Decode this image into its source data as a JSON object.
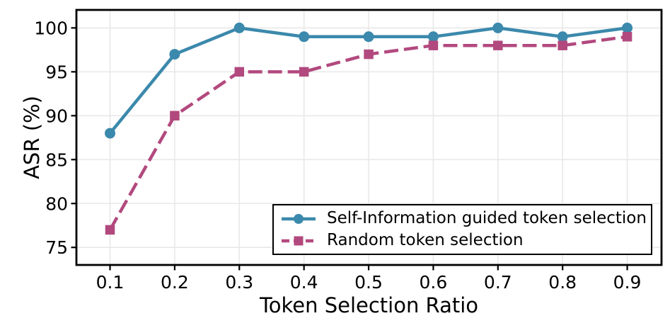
{
  "figure": {
    "background": "#ffffff"
  },
  "chart_data": {
    "type": "line",
    "title": "",
    "xlabel": "Token Selection Ratio",
    "ylabel": "ASR (%)",
    "x": [
      0.1,
      0.2,
      0.3,
      0.4,
      0.5,
      0.6,
      0.7,
      0.8,
      0.9
    ],
    "x_tick_labels": [
      "0.1",
      "0.2",
      "0.3",
      "0.4",
      "0.5",
      "0.6",
      "0.7",
      "0.8",
      "0.9"
    ],
    "y_ticks": [
      75,
      80,
      85,
      90,
      95,
      100
    ],
    "xlim": [
      0.048,
      0.953
    ],
    "ylim": [
      73.0,
      102.05
    ],
    "grid": true,
    "legend_position": "lower right",
    "series": [
      {
        "name": "Self-Information guided token selection",
        "values": [
          88,
          97,
          100,
          99,
          99,
          99,
          100,
          99,
          100
        ],
        "color": "#3b89ac",
        "marker": "circle",
        "line_style": "solid"
      },
      {
        "name": "Random token selection",
        "values": [
          77,
          90,
          95,
          95,
          97,
          98,
          98,
          98,
          99
        ],
        "color": "#b2497e",
        "marker": "square",
        "line_style": "dashed"
      }
    ],
    "colors": {
      "grid": "#e8e8e8",
      "axis": "#000000",
      "text": "#000000"
    }
  }
}
